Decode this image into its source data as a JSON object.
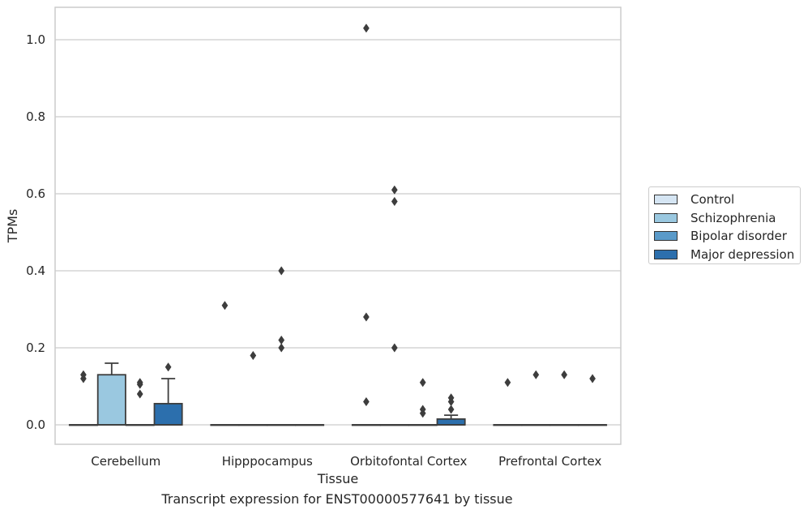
{
  "chart_data": {
    "type": "boxplot",
    "xlabel": "Tissue",
    "ylabel": "TPMs",
    "ylim": [
      -0.05,
      1.08
    ],
    "yticks": [
      0.0,
      0.2,
      0.4,
      0.6,
      0.8,
      1.0
    ],
    "ytick_labels": [
      "0.0",
      "0.2",
      "0.4",
      "0.6",
      "0.8",
      "1.0"
    ],
    "grid": true,
    "legend_position": "right",
    "categories": [
      "Cerebellum",
      "Hipppocampus",
      "Orbitofontal Cortex",
      "Prefrontal Cortex"
    ],
    "series": [
      {
        "name": "Control",
        "color": "#d5e5f3",
        "boxes": [
          {
            "q1": 0,
            "median": 0,
            "q3": 0,
            "whisker_low": 0,
            "whisker_high": 0,
            "outliers": [
              0.12,
              0.13
            ]
          },
          {
            "q1": 0,
            "median": 0,
            "q3": 0,
            "whisker_low": 0,
            "whisker_high": 0,
            "outliers": [
              0.31
            ]
          },
          {
            "q1": 0,
            "median": 0,
            "q3": 0,
            "whisker_low": 0,
            "whisker_high": 0,
            "outliers": [
              0.06,
              0.28,
              1.03
            ]
          },
          {
            "q1": 0,
            "median": 0,
            "q3": 0,
            "whisker_low": 0,
            "whisker_high": 0,
            "outliers": [
              0.11
            ]
          }
        ]
      },
      {
        "name": "Schizophrenia",
        "color": "#9ac8e0",
        "boxes": [
          {
            "q1": 0,
            "median": 0,
            "q3": 0.13,
            "whisker_low": 0,
            "whisker_high": 0.16,
            "outliers": []
          },
          {
            "q1": 0,
            "median": 0,
            "q3": 0,
            "whisker_low": 0,
            "whisker_high": 0,
            "outliers": [
              0.18
            ]
          },
          {
            "q1": 0,
            "median": 0,
            "q3": 0,
            "whisker_low": 0,
            "whisker_high": 0,
            "outliers": [
              0.2,
              0.58,
              0.61
            ]
          },
          {
            "q1": 0,
            "median": 0,
            "q3": 0,
            "whisker_low": 0,
            "whisker_high": 0,
            "outliers": [
              0.13
            ]
          }
        ]
      },
      {
        "name": "Bipolar disorder",
        "color": "#5a9ac9",
        "boxes": [
          {
            "q1": 0,
            "median": 0,
            "q3": 0,
            "whisker_low": 0,
            "whisker_high": 0,
            "outliers": [
              0.08,
              0.105,
              0.11
            ]
          },
          {
            "q1": 0,
            "median": 0,
            "q3": 0,
            "whisker_low": 0,
            "whisker_high": 0,
            "outliers": [
              0.2,
              0.22,
              0.4
            ]
          },
          {
            "q1": 0,
            "median": 0,
            "q3": 0,
            "whisker_low": 0,
            "whisker_high": 0,
            "outliers": [
              0.03,
              0.04,
              0.11
            ]
          },
          {
            "q1": 0,
            "median": 0,
            "q3": 0,
            "whisker_low": 0,
            "whisker_high": 0,
            "outliers": [
              0.13
            ]
          }
        ]
      },
      {
        "name": "Major depression",
        "color": "#2c6fad",
        "boxes": [
          {
            "q1": 0,
            "median": 0,
            "q3": 0.055,
            "whisker_low": 0,
            "whisker_high": 0.12,
            "outliers": [
              0.15
            ]
          },
          {
            "q1": 0,
            "median": 0,
            "q3": 0,
            "whisker_low": 0,
            "whisker_high": 0,
            "outliers": []
          },
          {
            "q1": 0,
            "median": 0,
            "q3": 0.015,
            "whisker_low": 0,
            "whisker_high": 0.025,
            "outliers": [
              0.04,
              0.06,
              0.07
            ]
          },
          {
            "q1": 0,
            "median": 0,
            "q3": 0,
            "whisker_low": 0,
            "whisker_high": 0,
            "outliers": [
              0.12
            ]
          }
        ]
      }
    ]
  },
  "caption": "Transcript expression for ENST00000577641 by tissue"
}
